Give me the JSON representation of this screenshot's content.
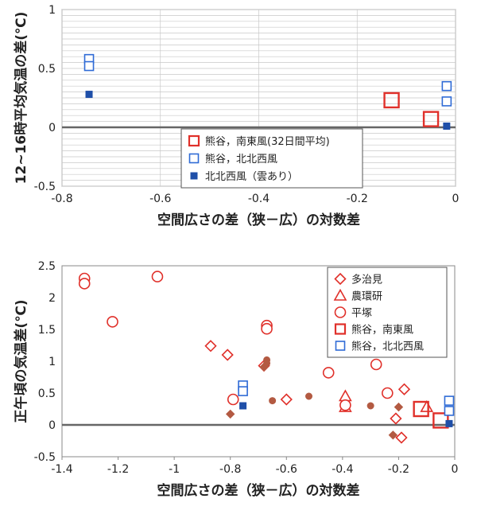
{
  "chart_data": [
    {
      "type": "scatter",
      "xlabel": "空間広さの差（狭－広）の対数差",
      "ylabel": "12~16時平均気温の差(℃)",
      "xlim": [
        -0.8,
        0
      ],
      "ylim": [
        -0.5,
        1
      ],
      "xticks": [
        "-0.8",
        "-0.6",
        "-0.4",
        "-0.2",
        "0"
      ],
      "xtick_values": [
        -0.8,
        -0.6,
        -0.4,
        -0.2,
        0
      ],
      "yticks": [
        "1",
        "0.5",
        "0",
        "-0.5"
      ],
      "ytick_values": [
        1,
        0.5,
        0,
        -0.5
      ],
      "grid": true,
      "legend_position": "bottom-center",
      "series": [
        {
          "name": "熊谷，南東風(32日間平均)",
          "color": "#e0302a",
          "marker": "square-open-large",
          "points": [
            [
              -0.13,
              0.23
            ],
            [
              -0.05,
              0.07
            ]
          ]
        },
        {
          "name": "熊谷，北北西風",
          "color": "#2f6bd6",
          "marker": "square-open",
          "points": [
            [
              -0.745,
              0.58
            ],
            [
              -0.745,
              0.52
            ],
            [
              -0.018,
              0.35
            ],
            [
              -0.018,
              0.22
            ]
          ]
        },
        {
          "name": "北北西風（雲あり）",
          "color": "#1f4fa8",
          "marker": "square-filled",
          "points": [
            [
              -0.745,
              0.28
            ],
            [
              -0.018,
              0.01
            ]
          ]
        }
      ]
    },
    {
      "type": "scatter",
      "xlabel": "空間広さの差（狭－広）の対数差",
      "ylabel": "正午頃の気温差(℃)",
      "xlim": [
        -1.4,
        0
      ],
      "ylim": [
        -0.5,
        2.5
      ],
      "xticks": [
        "-1.4",
        "-1.2",
        "-1",
        "-0.8",
        "-0.6",
        "-0.4",
        "-0.2",
        "0"
      ],
      "xtick_values": [
        -1.4,
        -1.2,
        -1,
        -0.8,
        -0.6,
        -0.4,
        -0.2,
        0
      ],
      "yticks": [
        "2.5",
        "2",
        "1.5",
        "1",
        "0.5",
        "0",
        "-0.5"
      ],
      "ytick_values": [
        2.5,
        2,
        1.5,
        1,
        0.5,
        0,
        -0.5
      ],
      "grid": false,
      "legend_position": "top-right",
      "series": [
        {
          "name": "多治見",
          "color": "#e0302a",
          "marker": "diamond-open",
          "points": [
            [
              -0.87,
              1.24
            ],
            [
              -0.81,
              1.1
            ],
            [
              -0.68,
              0.93
            ],
            [
              -0.6,
              0.4
            ],
            [
              -0.21,
              0.1
            ],
            [
              -0.18,
              0.56
            ],
            [
              -0.19,
              -0.2
            ]
          ]
        },
        {
          "name": "農環研",
          "color": "#e0302a",
          "marker": "triangle-open",
          "points": [
            [
              -0.39,
              0.45
            ],
            [
              -0.39,
              0.28
            ],
            [
              -0.1,
              0.28
            ]
          ]
        },
        {
          "name": "平塚",
          "color": "#e0302a",
          "marker": "circle-open",
          "points": [
            [
              -1.32,
              2.3
            ],
            [
              -1.32,
              2.22
            ],
            [
              -1.06,
              2.33
            ],
            [
              -1.22,
              1.62
            ],
            [
              -0.67,
              1.56
            ],
            [
              -0.67,
              1.51
            ],
            [
              -0.79,
              0.4
            ],
            [
              -0.45,
              0.82
            ],
            [
              -0.28,
              0.95
            ],
            [
              -0.24,
              0.5
            ],
            [
              -0.39,
              0.31
            ]
          ]
        },
        {
          "name": "熊谷，南東風",
          "color": "#e0302a",
          "marker": "square-open-large",
          "points": [
            [
              -0.12,
              0.25
            ],
            [
              -0.05,
              0.07
            ]
          ]
        },
        {
          "name": "熊谷，北北西風",
          "color": "#2f6bd6",
          "marker": "square-open",
          "points": [
            [
              -0.755,
              0.62
            ],
            [
              -0.755,
              0.53
            ],
            [
              -0.02,
              0.38
            ],
            [
              -0.02,
              0.22
            ]
          ]
        },
        {
          "name": "",
          "color": "#1f4fa8",
          "marker": "square-filled",
          "legend": false,
          "points": [
            [
              -0.755,
              0.3
            ],
            [
              -0.02,
              0.02
            ]
          ]
        },
        {
          "name": "",
          "color": "#b35a42",
          "marker": "diamond-filled",
          "legend": false,
          "points": [
            [
              -0.68,
              0.91
            ],
            [
              -0.8,
              0.17
            ],
            [
              -0.22,
              -0.16
            ],
            [
              -0.2,
              0.28
            ]
          ]
        },
        {
          "name": "",
          "color": "#b35a42",
          "marker": "circle-filled",
          "legend": false,
          "points": [
            [
              -0.67,
              1.02
            ],
            [
              -0.67,
              0.97
            ],
            [
              -0.65,
              0.38
            ],
            [
              -0.52,
              0.45
            ],
            [
              -0.3,
              0.3
            ]
          ]
        }
      ]
    }
  ]
}
